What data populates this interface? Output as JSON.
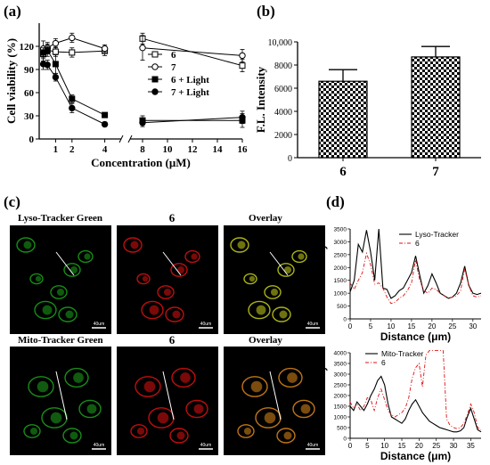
{
  "panels": {
    "a": {
      "label": "(a)"
    },
    "b": {
      "label": "(b)"
    },
    "c": {
      "label": "(c)",
      "rows": [
        {
          "left_label": "Lyso-Tracker Green",
          "mid_label": "6",
          "right_label": "Overlay",
          "colors": [
            "#1aa61a",
            "#e01010",
            "#c8d21a"
          ]
        },
        {
          "left_label": "Mito-Tracker Green",
          "mid_label": "6",
          "right_label": "Overlay",
          "colors": [
            "#1ea51e",
            "#e01010",
            "#e08a1a"
          ]
        }
      ],
      "scale_bar_label": "40um"
    },
    "d": {
      "label": "(d)"
    }
  },
  "chart_data": [
    {
      "id": "a",
      "type": "line",
      "xlabel": "Concentration (μM)",
      "ylabel": "Cell viability (%)",
      "x_ticks": [
        "1",
        "2",
        "4",
        "8",
        "10",
        "12",
        "14",
        "16"
      ],
      "y_ticks": [
        "0",
        "30",
        "60",
        "90",
        "120"
      ],
      "ylim": [
        0,
        150
      ],
      "x_axis_break": [
        5,
        7
      ],
      "series": [
        {
          "name": "6",
          "marker": "open-square",
          "points": [
            [
              0.25,
              110
            ],
            [
              0.5,
              115
            ],
            [
              1,
              113
            ],
            [
              2,
              112
            ],
            [
              4,
              114
            ],
            [
              8,
              130
            ],
            [
              16,
              95
            ]
          ],
          "err": [
            9,
            8,
            6,
            6,
            6,
            7,
            8
          ]
        },
        {
          "name": "7",
          "marker": "open-circle",
          "points": [
            [
              0.25,
              117
            ],
            [
              0.5,
              118
            ],
            [
              1,
              124
            ],
            [
              2,
              131
            ],
            [
              4,
              117
            ],
            [
              8,
              118
            ],
            [
              16,
              108
            ]
          ],
          "err": [
            10,
            7,
            6,
            6,
            5,
            16,
            8
          ]
        },
        {
          "name": "6 + Light",
          "marker": "filled-square",
          "points": [
            [
              0.25,
              112
            ],
            [
              0.5,
              115
            ],
            [
              1,
              97
            ],
            [
              2,
              52
            ],
            [
              4,
              31
            ],
            [
              8,
              24
            ],
            [
              16,
              24
            ]
          ],
          "err": [
            6,
            5,
            12,
            5,
            3,
            6,
            9
          ]
        },
        {
          "name": "7 + Light",
          "marker": "filled-circle",
          "points": [
            [
              0.25,
              97
            ],
            [
              0.5,
              96
            ],
            [
              1,
              80
            ],
            [
              2,
              40
            ],
            [
              4,
              19
            ],
            [
              8,
              21
            ],
            [
              16,
              28
            ]
          ],
          "err": [
            7,
            6,
            5,
            6,
            3,
            5,
            8
          ]
        }
      ]
    },
    {
      "id": "b",
      "type": "bar",
      "ylabel": "F.L. Intensity",
      "categories": [
        "6",
        "7"
      ],
      "values": [
        6600,
        8700
      ],
      "errors": [
        1000,
        900
      ],
      "ylim": [
        0,
        10000
      ],
      "y_ticks": [
        "0",
        "2000",
        "4000",
        "6000",
        "8000",
        "10,000"
      ]
    },
    {
      "id": "d1",
      "type": "line",
      "xlabel": "Distance (μm)",
      "ylabel": "F.L. Intensity",
      "xlim": [
        0,
        32
      ],
      "ylim": [
        0,
        3500
      ],
      "x_ticks": [
        "0",
        "5",
        "10",
        "15",
        "20",
        "25",
        "30"
      ],
      "y_ticks": [
        "0",
        "500",
        "1000",
        "1500",
        "2000",
        "2500",
        "3000",
        "3500"
      ],
      "series": [
        {
          "name": "Lyso-Tracker",
          "color": "#000000",
          "style": "solid",
          "points": [
            [
              0,
              1050
            ],
            [
              1,
              1500
            ],
            [
              2,
              2900
            ],
            [
              3,
              2600
            ],
            [
              4,
              3450
            ],
            [
              5,
              2600
            ],
            [
              6,
              1500
            ],
            [
              7,
              3500
            ],
            [
              8,
              1200
            ],
            [
              9,
              1150
            ],
            [
              10,
              800
            ],
            [
              11,
              900
            ],
            [
              12,
              1100
            ],
            [
              13,
              1200
            ],
            [
              14,
              1500
            ],
            [
              15,
              1800
            ],
            [
              16,
              2450
            ],
            [
              17,
              1700
            ],
            [
              18,
              1000
            ],
            [
              19,
              1300
            ],
            [
              20,
              1750
            ],
            [
              21,
              1400
            ],
            [
              22,
              1000
            ],
            [
              23,
              900
            ],
            [
              24,
              800
            ],
            [
              25,
              850
            ],
            [
              26,
              1000
            ],
            [
              27,
              1400
            ],
            [
              28,
              2050
            ],
            [
              29,
              1300
            ],
            [
              30,
              1000
            ],
            [
              31,
              950
            ],
            [
              32,
              1000
            ]
          ]
        },
        {
          "name": "6",
          "color": "#e01010",
          "style": "dashdot",
          "points": [
            [
              0,
              1400
            ],
            [
              1,
              1150
            ],
            [
              2,
              1500
            ],
            [
              3,
              1800
            ],
            [
              4,
              2550
            ],
            [
              5,
              2100
            ],
            [
              6,
              1350
            ],
            [
              7,
              1400
            ],
            [
              8,
              1200
            ],
            [
              9,
              850
            ],
            [
              10,
              600
            ],
            [
              11,
              650
            ],
            [
              12,
              800
            ],
            [
              13,
              900
            ],
            [
              14,
              1100
            ],
            [
              15,
              1400
            ],
            [
              16,
              2300
            ],
            [
              17,
              1500
            ],
            [
              18,
              1100
            ],
            [
              19,
              1000
            ],
            [
              20,
              1200
            ],
            [
              21,
              1150
            ],
            [
              22,
              1000
            ],
            [
              23,
              900
            ],
            [
              24,
              800
            ],
            [
              25,
              850
            ],
            [
              26,
              900
            ],
            [
              27,
              1100
            ],
            [
              28,
              1950
            ],
            [
              29,
              1300
            ],
            [
              30,
              900
            ],
            [
              31,
              850
            ],
            [
              32,
              900
            ]
          ]
        }
      ]
    },
    {
      "id": "d2",
      "type": "line",
      "xlabel": "Distance (μm)",
      "ylabel": "F.L. Intensity",
      "xlim": [
        0,
        38
      ],
      "ylim": [
        0,
        4000
      ],
      "x_ticks": [
        "0",
        "5",
        "10",
        "15",
        "20",
        "25",
        "30",
        "35"
      ],
      "y_ticks": [
        "0",
        "500",
        "1000",
        "1500",
        "2000",
        "2500",
        "3000",
        "3500",
        "4000"
      ],
      "series": [
        {
          "name": "Mito-Tracker",
          "color": "#000000",
          "style": "solid",
          "points": [
            [
              0,
              1500
            ],
            [
              1,
              1300
            ],
            [
              2,
              1700
            ],
            [
              3,
              1500
            ],
            [
              4,
              1300
            ],
            [
              5,
              1600
            ],
            [
              6,
              2000
            ],
            [
              7,
              2300
            ],
            [
              8,
              2700
            ],
            [
              9,
              2900
            ],
            [
              10,
              2500
            ],
            [
              11,
              1600
            ],
            [
              12,
              1000
            ],
            [
              13,
              900
            ],
            [
              14,
              800
            ],
            [
              15,
              700
            ],
            [
              16,
              900
            ],
            [
              17,
              1300
            ],
            [
              18,
              1600
            ],
            [
              19,
              1800
            ],
            [
              20,
              1500
            ],
            [
              21,
              1200
            ],
            [
              22,
              1000
            ],
            [
              23,
              800
            ],
            [
              24,
              700
            ],
            [
              25,
              600
            ],
            [
              26,
              500
            ],
            [
              27,
              450
            ],
            [
              28,
              400
            ],
            [
              29,
              350
            ],
            [
              30,
              300
            ],
            [
              31,
              300
            ],
            [
              32,
              350
            ],
            [
              33,
              500
            ],
            [
              34,
              1000
            ],
            [
              35,
              1400
            ],
            [
              36,
              900
            ],
            [
              37,
              400
            ],
            [
              38,
              300
            ]
          ]
        },
        {
          "name": "6",
          "color": "#e01010",
          "style": "dashdot",
          "points": [
            [
              0,
              1700
            ],
            [
              1,
              1400
            ],
            [
              2,
              1600
            ],
            [
              3,
              1300
            ],
            [
              4,
              1500
            ],
            [
              5,
              1900
            ],
            [
              6,
              1800
            ],
            [
              7,
              1300
            ],
            [
              8,
              1900
            ],
            [
              9,
              2300
            ],
            [
              10,
              1800
            ],
            [
              11,
              1300
            ],
            [
              12,
              1100
            ],
            [
              13,
              1000
            ],
            [
              14,
              1100
            ],
            [
              15,
              1200
            ],
            [
              16,
              1400
            ],
            [
              17,
              1900
            ],
            [
              18,
              2800
            ],
            [
              19,
              3300
            ],
            [
              20,
              3500
            ],
            [
              21,
              2400
            ],
            [
              22,
              3900
            ],
            [
              23,
              4100
            ],
            [
              24,
              4100
            ],
            [
              25,
              4100
            ],
            [
              26,
              4100
            ],
            [
              27,
              4100
            ],
            [
              28,
              900
            ],
            [
              29,
              600
            ],
            [
              30,
              500
            ],
            [
              31,
              450
            ],
            [
              32,
              500
            ],
            [
              33,
              700
            ],
            [
              34,
              1100
            ],
            [
              35,
              1600
            ],
            [
              36,
              1200
            ],
            [
              37,
              500
            ],
            [
              38,
              400
            ]
          ]
        }
      ]
    }
  ]
}
